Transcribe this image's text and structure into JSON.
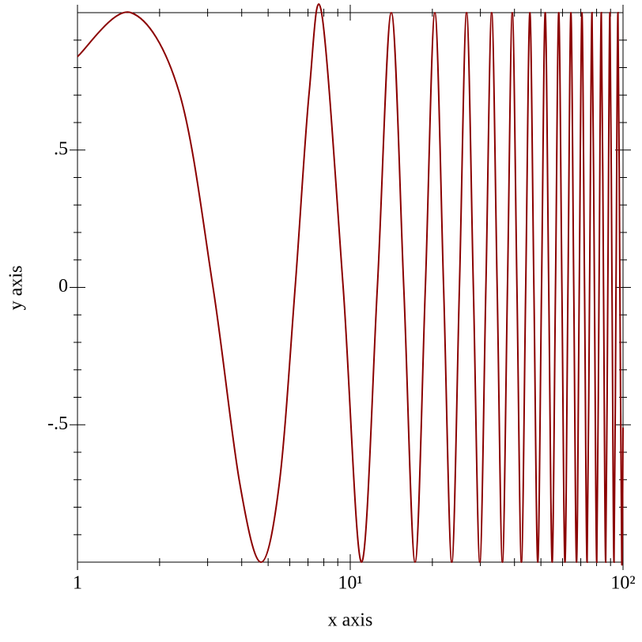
{
  "chart_data": {
    "type": "line",
    "xlabel": "x axis",
    "ylabel": "y axis",
    "xscale": "log",
    "xlim": [
      1,
      100
    ],
    "xticks": [
      1,
      {
        "value": 10,
        "label": "10¹"
      },
      {
        "value": 100,
        "label": "10²"
      }
    ],
    "xminorticks": [
      2,
      3,
      4,
      5,
      6,
      7,
      8,
      9,
      20,
      30,
      40,
      50,
      60,
      70,
      80,
      90
    ],
    "ylim": [
      -1,
      1
    ],
    "yticks": [
      {
        "value": -0.5,
        "label": "-.5"
      },
      0,
      {
        "value": 0.5,
        "label": ".5"
      }
    ],
    "yminorticks": [
      -0.9,
      -0.8,
      -0.7,
      -0.6,
      -0.4,
      -0.3,
      -0.2,
      -0.1,
      0.1,
      0.2,
      0.3,
      0.4,
      0.6,
      0.7,
      0.8,
      0.9
    ],
    "series": [
      {
        "color": "#8b0000",
        "x": [
          1,
          1.57,
          2.36,
          3.14,
          3.93,
          4.71,
          5.5,
          6.28,
          7.07,
          7.85,
          9.42,
          11.0,
          12.57,
          14.14,
          15.71,
          17.28,
          18.85,
          20.42,
          21.99,
          23.56,
          25.13,
          26.7,
          28.27,
          29.85,
          31.42,
          32.99,
          34.56,
          36.13,
          37.7,
          39.27,
          40.84,
          42.41,
          43.98,
          45.55,
          47.12,
          48.69,
          50.27,
          51.84,
          53.41,
          54.98,
          56.55,
          58.12,
          59.69,
          61.26,
          62.83,
          64.4,
          65.97,
          67.54,
          69.12,
          70.69,
          72.26,
          73.83,
          75.4,
          76.97,
          78.54,
          80.11,
          81.68,
          83.25,
          84.82,
          86.39,
          87.96,
          89.54,
          91.11,
          92.68,
          94.25,
          95.82,
          97.39,
          98.96,
          100
        ],
        "values": [
          0.84,
          1,
          0.71,
          0,
          -0.71,
          -1,
          -0.71,
          0,
          0.71,
          1,
          0,
          -1,
          0,
          1,
          0,
          -1,
          0,
          1,
          0,
          -1,
          0,
          1,
          0,
          -1,
          0,
          1,
          0,
          -1,
          0,
          1,
          0,
          -1,
          0,
          1,
          0,
          -1,
          0,
          1,
          0,
          -1,
          0,
          1,
          0,
          -1,
          0,
          1,
          0,
          -1,
          0,
          1,
          0,
          -1,
          0,
          1,
          0,
          -1,
          0,
          1,
          0,
          -1,
          0,
          1,
          0,
          -1,
          0,
          1,
          0,
          -1,
          -0.51
        ]
      }
    ]
  }
}
